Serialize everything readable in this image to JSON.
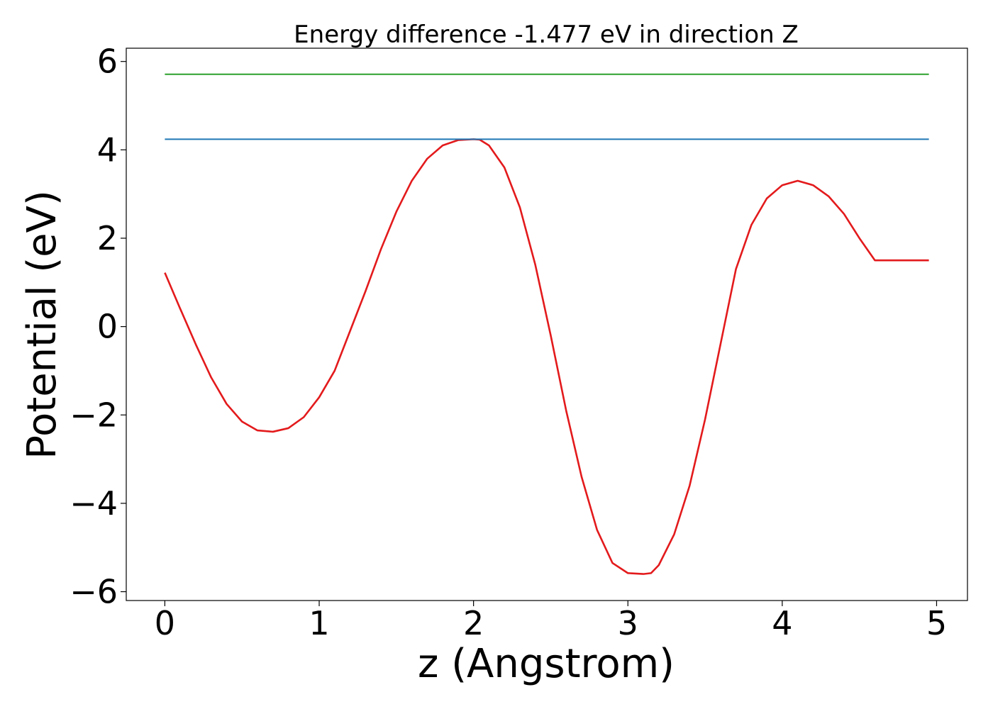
{
  "chart_data": {
    "type": "line",
    "title": "Energy difference -1.477 eV in direction Z",
    "xlabel": "z (Angstrom)",
    "ylabel": "Potential (eV)",
    "xlim": [
      -0.25,
      5.2
    ],
    "ylim": [
      -6.2,
      6.3
    ],
    "xticks": [
      0,
      1,
      2,
      3,
      4,
      5
    ],
    "xtick_labels": [
      "0",
      "1",
      "2",
      "3",
      "4",
      "5"
    ],
    "yticks": [
      6,
      4,
      2,
      0,
      -2,
      -4,
      -6
    ],
    "ytick_labels": [
      "6",
      "4",
      "2",
      "0",
      "−2",
      "−4",
      "−6"
    ],
    "grid": false,
    "legend": "none",
    "series": [
      {
        "color": "#e31a1c",
        "x": [
          0,
          0.1,
          0.2,
          0.3,
          0.4,
          0.5,
          0.6,
          0.7,
          0.8,
          0.9,
          1.0,
          1.1,
          1.2,
          1.3,
          1.4,
          1.5,
          1.6,
          1.7,
          1.8,
          1.9,
          2.0,
          2.04,
          2.1,
          2.2,
          2.3,
          2.4,
          2.5,
          2.6,
          2.7,
          2.8,
          2.9,
          3.0,
          3.1,
          3.15,
          3.2,
          3.3,
          3.4,
          3.5,
          3.6,
          3.7,
          3.8,
          3.9,
          4.0,
          4.1,
          4.2,
          4.3,
          4.4,
          4.5,
          4.6,
          4.7,
          4.8,
          4.95
        ],
        "y": [
          1.22,
          0.4,
          -0.4,
          -1.15,
          -1.75,
          -2.15,
          -2.35,
          -2.38,
          -2.3,
          -2.05,
          -1.6,
          -1.0,
          -0.1,
          0.8,
          1.75,
          2.6,
          3.3,
          3.8,
          4.1,
          4.22,
          4.24,
          4.23,
          4.1,
          3.6,
          2.7,
          1.4,
          -0.2,
          -1.9,
          -3.4,
          -4.6,
          -5.35,
          -5.58,
          -5.6,
          -5.58,
          -5.4,
          -4.7,
          -3.6,
          -2.1,
          -0.4,
          1.3,
          2.3,
          2.9,
          3.2,
          3.3,
          3.2,
          2.95,
          2.55,
          2.0,
          1.5,
          1.5,
          1.5,
          1.5
        ]
      },
      {
        "color": "#1f77b4",
        "x": [
          0,
          4.95
        ],
        "y": [
          4.24,
          4.24
        ]
      },
      {
        "color": "#2ca02c",
        "x": [
          0,
          4.95
        ],
        "y": [
          5.71,
          5.71
        ]
      }
    ]
  }
}
